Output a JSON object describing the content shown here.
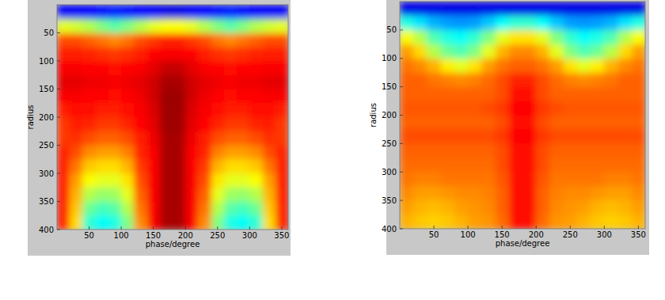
{
  "chart_data": [
    {
      "type": "heatmap",
      "x_label": "phase/degree",
      "y_label": "radius",
      "color": "jet",
      "xlim": [
        0,
        360
      ],
      "ylim": [
        0,
        400
      ],
      "xticks": [
        50,
        100,
        150,
        200,
        250,
        300,
        350
      ],
      "yticks": [
        50,
        100,
        150,
        200,
        250,
        300,
        350,
        400
      ],
      "color_range": [
        0,
        1
      ],
      "x": [
        10,
        30,
        50,
        70,
        90,
        110,
        130,
        150,
        170,
        190,
        210,
        230,
        250,
        270,
        290,
        310,
        330,
        350
      ],
      "y": [
        12.5,
        37.5,
        62.5,
        87.5,
        112.5,
        137.5,
        162.5,
        187.5,
        212.5,
        237.5,
        262.5,
        287.5,
        312.5,
        337.5,
        362.5,
        387.5
      ],
      "cells": [
        [
          0.12,
          0.12,
          0.13,
          0.14,
          0.15,
          0.14,
          0.13,
          0.12,
          0.1,
          0.1,
          0.12,
          0.13,
          0.14,
          0.15,
          0.14,
          0.13,
          0.12,
          0.12
        ],
        [
          0.6,
          0.58,
          0.55,
          0.5,
          0.46,
          0.5,
          0.55,
          0.6,
          0.62,
          0.62,
          0.6,
          0.55,
          0.5,
          0.46,
          0.5,
          0.55,
          0.58,
          0.6
        ],
        [
          0.8,
          0.8,
          0.78,
          0.76,
          0.74,
          0.76,
          0.8,
          0.82,
          0.84,
          0.84,
          0.82,
          0.8,
          0.76,
          0.74,
          0.76,
          0.78,
          0.8,
          0.8
        ],
        [
          0.85,
          0.85,
          0.84,
          0.83,
          0.82,
          0.83,
          0.85,
          0.87,
          0.88,
          0.88,
          0.87,
          0.85,
          0.83,
          0.82,
          0.83,
          0.84,
          0.85,
          0.85
        ],
        [
          0.88,
          0.88,
          0.87,
          0.87,
          0.86,
          0.87,
          0.88,
          0.9,
          0.93,
          0.93,
          0.9,
          0.88,
          0.87,
          0.86,
          0.87,
          0.87,
          0.88,
          0.88
        ],
        [
          0.9,
          0.9,
          0.89,
          0.89,
          0.88,
          0.89,
          0.9,
          0.92,
          0.96,
          0.96,
          0.92,
          0.9,
          0.89,
          0.88,
          0.89,
          0.89,
          0.9,
          0.9
        ],
        [
          0.88,
          0.88,
          0.87,
          0.87,
          0.86,
          0.87,
          0.89,
          0.92,
          0.97,
          0.97,
          0.92,
          0.89,
          0.87,
          0.86,
          0.87,
          0.87,
          0.88,
          0.88
        ],
        [
          0.85,
          0.86,
          0.86,
          0.85,
          0.85,
          0.86,
          0.88,
          0.91,
          0.97,
          0.97,
          0.91,
          0.88,
          0.86,
          0.85,
          0.85,
          0.86,
          0.86,
          0.85
        ],
        [
          0.82,
          0.85,
          0.84,
          0.82,
          0.82,
          0.84,
          0.87,
          0.9,
          0.97,
          0.97,
          0.9,
          0.87,
          0.84,
          0.82,
          0.82,
          0.84,
          0.85,
          0.82
        ],
        [
          0.82,
          0.83,
          0.8,
          0.78,
          0.78,
          0.8,
          0.85,
          0.89,
          0.96,
          0.96,
          0.89,
          0.85,
          0.8,
          0.78,
          0.78,
          0.8,
          0.83,
          0.82
        ],
        [
          0.84,
          0.8,
          0.74,
          0.72,
          0.72,
          0.75,
          0.84,
          0.88,
          0.96,
          0.96,
          0.88,
          0.84,
          0.75,
          0.72,
          0.72,
          0.74,
          0.8,
          0.84
        ],
        [
          0.85,
          0.76,
          0.68,
          0.66,
          0.66,
          0.7,
          0.82,
          0.88,
          0.96,
          0.96,
          0.88,
          0.82,
          0.7,
          0.66,
          0.66,
          0.68,
          0.76,
          0.85
        ],
        [
          0.85,
          0.72,
          0.62,
          0.6,
          0.6,
          0.65,
          0.8,
          0.88,
          0.96,
          0.96,
          0.88,
          0.8,
          0.65,
          0.6,
          0.6,
          0.62,
          0.72,
          0.85
        ],
        [
          0.85,
          0.7,
          0.55,
          0.52,
          0.53,
          0.6,
          0.78,
          0.88,
          0.96,
          0.96,
          0.88,
          0.78,
          0.6,
          0.53,
          0.52,
          0.55,
          0.7,
          0.85
        ],
        [
          0.85,
          0.68,
          0.48,
          0.44,
          0.46,
          0.55,
          0.76,
          0.88,
          0.96,
          0.96,
          0.88,
          0.76,
          0.55,
          0.46,
          0.44,
          0.48,
          0.68,
          0.85
        ],
        [
          0.85,
          0.66,
          0.42,
          0.38,
          0.4,
          0.5,
          0.74,
          0.88,
          0.96,
          0.96,
          0.88,
          0.74,
          0.5,
          0.4,
          0.38,
          0.42,
          0.66,
          0.85
        ]
      ]
    },
    {
      "type": "heatmap",
      "x_label": "phase/degree",
      "y_label": "radius",
      "color": "jet",
      "xlim": [
        0,
        360
      ],
      "ylim": [
        0,
        400
      ],
      "xticks": [
        50,
        100,
        150,
        200,
        250,
        300,
        350
      ],
      "yticks": [
        50,
        100,
        150,
        200,
        250,
        300,
        350,
        400
      ],
      "color_range": [
        0,
        1
      ],
      "x": [
        10,
        30,
        50,
        70,
        90,
        110,
        130,
        150,
        170,
        190,
        210,
        230,
        250,
        270,
        290,
        310,
        330,
        350
      ],
      "y": [
        12.5,
        37.5,
        62.5,
        87.5,
        112.5,
        137.5,
        162.5,
        187.5,
        212.5,
        237.5,
        262.5,
        287.5,
        312.5,
        337.5,
        362.5,
        387.5
      ],
      "cells": [
        [
          0.1,
          0.1,
          0.1,
          0.1,
          0.1,
          0.1,
          0.1,
          0.1,
          0.1,
          0.1,
          0.1,
          0.1,
          0.1,
          0.1,
          0.1,
          0.1,
          0.1,
          0.1
        ],
        [
          0.4,
          0.35,
          0.3,
          0.28,
          0.27,
          0.28,
          0.32,
          0.38,
          0.42,
          0.42,
          0.38,
          0.32,
          0.28,
          0.27,
          0.28,
          0.3,
          0.35,
          0.4
        ],
        [
          0.62,
          0.55,
          0.45,
          0.4,
          0.38,
          0.42,
          0.5,
          0.6,
          0.65,
          0.65,
          0.6,
          0.5,
          0.42,
          0.38,
          0.4,
          0.45,
          0.55,
          0.62
        ],
        [
          0.72,
          0.66,
          0.55,
          0.48,
          0.45,
          0.5,
          0.6,
          0.7,
          0.74,
          0.74,
          0.7,
          0.6,
          0.5,
          0.45,
          0.48,
          0.55,
          0.66,
          0.72
        ],
        [
          0.76,
          0.74,
          0.7,
          0.64,
          0.6,
          0.65,
          0.72,
          0.76,
          0.78,
          0.78,
          0.76,
          0.72,
          0.65,
          0.6,
          0.64,
          0.7,
          0.74,
          0.76
        ],
        [
          0.78,
          0.78,
          0.76,
          0.75,
          0.74,
          0.75,
          0.77,
          0.8,
          0.84,
          0.84,
          0.8,
          0.77,
          0.75,
          0.74,
          0.75,
          0.76,
          0.78,
          0.78
        ],
        [
          0.78,
          0.78,
          0.78,
          0.78,
          0.78,
          0.78,
          0.78,
          0.8,
          0.86,
          0.86,
          0.8,
          0.78,
          0.78,
          0.78,
          0.78,
          0.78,
          0.78,
          0.78
        ],
        [
          0.79,
          0.79,
          0.79,
          0.79,
          0.79,
          0.79,
          0.8,
          0.82,
          0.87,
          0.87,
          0.82,
          0.8,
          0.79,
          0.79,
          0.79,
          0.79,
          0.79,
          0.79
        ],
        [
          0.78,
          0.78,
          0.78,
          0.78,
          0.78,
          0.78,
          0.78,
          0.8,
          0.86,
          0.86,
          0.8,
          0.78,
          0.78,
          0.78,
          0.78,
          0.78,
          0.78,
          0.78
        ],
        [
          0.8,
          0.8,
          0.8,
          0.8,
          0.8,
          0.8,
          0.8,
          0.82,
          0.87,
          0.87,
          0.82,
          0.8,
          0.8,
          0.8,
          0.8,
          0.8,
          0.8,
          0.8
        ],
        [
          0.78,
          0.78,
          0.78,
          0.78,
          0.78,
          0.78,
          0.78,
          0.8,
          0.86,
          0.86,
          0.8,
          0.78,
          0.78,
          0.78,
          0.78,
          0.78,
          0.78,
          0.78
        ],
        [
          0.77,
          0.77,
          0.77,
          0.77,
          0.77,
          0.77,
          0.77,
          0.8,
          0.86,
          0.86,
          0.8,
          0.77,
          0.77,
          0.77,
          0.77,
          0.77,
          0.77,
          0.77
        ],
        [
          0.76,
          0.75,
          0.75,
          0.76,
          0.76,
          0.76,
          0.76,
          0.79,
          0.86,
          0.86,
          0.79,
          0.76,
          0.76,
          0.76,
          0.76,
          0.75,
          0.75,
          0.76
        ],
        [
          0.74,
          0.72,
          0.72,
          0.73,
          0.74,
          0.74,
          0.75,
          0.78,
          0.86,
          0.86,
          0.78,
          0.75,
          0.74,
          0.74,
          0.73,
          0.72,
          0.72,
          0.74
        ],
        [
          0.72,
          0.7,
          0.69,
          0.7,
          0.72,
          0.73,
          0.74,
          0.78,
          0.86,
          0.86,
          0.78,
          0.74,
          0.73,
          0.72,
          0.7,
          0.69,
          0.7,
          0.72
        ],
        [
          0.7,
          0.68,
          0.67,
          0.68,
          0.7,
          0.72,
          0.73,
          0.77,
          0.86,
          0.86,
          0.77,
          0.73,
          0.72,
          0.7,
          0.68,
          0.67,
          0.68,
          0.7
        ]
      ]
    }
  ]
}
